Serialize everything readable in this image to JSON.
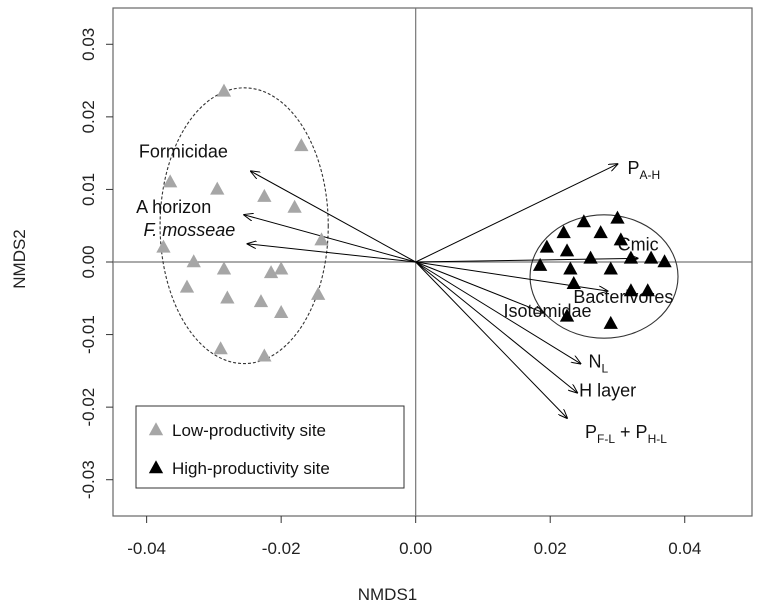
{
  "chart_data": {
    "type": "scatter",
    "xlabel": "NMDS1",
    "ylabel": "NMDS2",
    "xlim": [
      -0.045,
      0.05
    ],
    "ylim": [
      -0.035,
      0.035
    ],
    "x_ticks": [
      -0.04,
      -0.02,
      0.0,
      0.02,
      0.04
    ],
    "x_tick_labels": [
      "-0.04",
      "-0.02",
      "0.00",
      "0.02",
      "0.04"
    ],
    "y_ticks": [
      -0.03,
      -0.02,
      -0.01,
      0.0,
      0.01,
      0.02,
      0.03
    ],
    "y_tick_labels": [
      "-0.03",
      "-0.02",
      "-0.01",
      "0.00",
      "0.01",
      "0.02",
      "0.03"
    ],
    "reference_lines": {
      "x": 0,
      "y": 0
    },
    "grid": false,
    "legend_position": "bottom-left",
    "series": [
      {
        "name": "Low-productivity site",
        "color": "#a6a6a6",
        "marker": "triangle",
        "points": [
          {
            "x": -0.0285,
            "y": 0.0235
          },
          {
            "x": -0.017,
            "y": 0.016
          },
          {
            "x": -0.0365,
            "y": 0.011
          },
          {
            "x": -0.0295,
            "y": 0.01
          },
          {
            "x": -0.0225,
            "y": 0.009
          },
          {
            "x": -0.018,
            "y": 0.0075
          },
          {
            "x": -0.014,
            "y": 0.003
          },
          {
            "x": -0.0375,
            "y": 0.002
          },
          {
            "x": -0.033,
            "y": 0.0
          },
          {
            "x": -0.02,
            "y": -0.001
          },
          {
            "x": -0.0285,
            "y": -0.001
          },
          {
            "x": -0.0215,
            "y": -0.0015
          },
          {
            "x": -0.034,
            "y": -0.0035
          },
          {
            "x": -0.028,
            "y": -0.005
          },
          {
            "x": -0.023,
            "y": -0.0055
          },
          {
            "x": -0.0145,
            "y": -0.0045
          },
          {
            "x": -0.02,
            "y": -0.007
          },
          {
            "x": -0.029,
            "y": -0.012
          },
          {
            "x": -0.0225,
            "y": -0.013
          }
        ]
      },
      {
        "name": "High-productivity site",
        "color": "#000000",
        "marker": "triangle",
        "points": [
          {
            "x": 0.025,
            "y": 0.0055
          },
          {
            "x": 0.03,
            "y": 0.006
          },
          {
            "x": 0.022,
            "y": 0.004
          },
          {
            "x": 0.0275,
            "y": 0.004
          },
          {
            "x": 0.0195,
            "y": 0.002
          },
          {
            "x": 0.0225,
            "y": 0.0015
          },
          {
            "x": 0.0305,
            "y": 0.003
          },
          {
            "x": 0.026,
            "y": 0.0005
          },
          {
            "x": 0.032,
            "y": 0.0005
          },
          {
            "x": 0.035,
            "y": 0.0005
          },
          {
            "x": 0.037,
            "y": 0.0
          },
          {
            "x": 0.0185,
            "y": -0.0005
          },
          {
            "x": 0.023,
            "y": -0.001
          },
          {
            "x": 0.029,
            "y": -0.001
          },
          {
            "x": 0.0235,
            "y": -0.003
          },
          {
            "x": 0.032,
            "y": -0.004
          },
          {
            "x": 0.0345,
            "y": -0.004
          },
          {
            "x": 0.0225,
            "y": -0.0075
          },
          {
            "x": 0.029,
            "y": -0.0085
          }
        ]
      }
    ],
    "ellipses": [
      {
        "group": "Low-productivity site",
        "cx": -0.0255,
        "cy": 0.005,
        "rx": 0.0125,
        "ry": 0.019,
        "style": "dashed"
      },
      {
        "group": "High-productivity site",
        "cx": 0.028,
        "cy": -0.002,
        "rx": 0.011,
        "ry": 0.0085,
        "style": "solid"
      }
    ],
    "vectors": [
      {
        "label": "Formicidae",
        "x": -0.0245,
        "y": 0.0125
      },
      {
        "label": "A horizon",
        "x": -0.0255,
        "y": 0.0065
      },
      {
        "label": "F. mosseae",
        "x": -0.025,
        "y": 0.0025,
        "italic": true
      },
      {
        "label": "P",
        "subscript": "A-H",
        "x": 0.03,
        "y": 0.0135
      },
      {
        "label": "Cmic",
        "x": 0.033,
        "y": 0.0005
      },
      {
        "label": "Bacterivores",
        "x": 0.0285,
        "y": -0.004
      },
      {
        "label": "Isotomidae",
        "x": 0.019,
        "y": -0.007
      },
      {
        "label": "N",
        "subscript": "L",
        "x": 0.0245,
        "y": -0.014
      },
      {
        "label": "H layer",
        "x": 0.024,
        "y": -0.018
      },
      {
        "label": "P",
        "subscript": "F-L",
        "label2": " + P",
        "subscript2": "H-L",
        "x": 0.0225,
        "y": -0.0215
      }
    ]
  }
}
